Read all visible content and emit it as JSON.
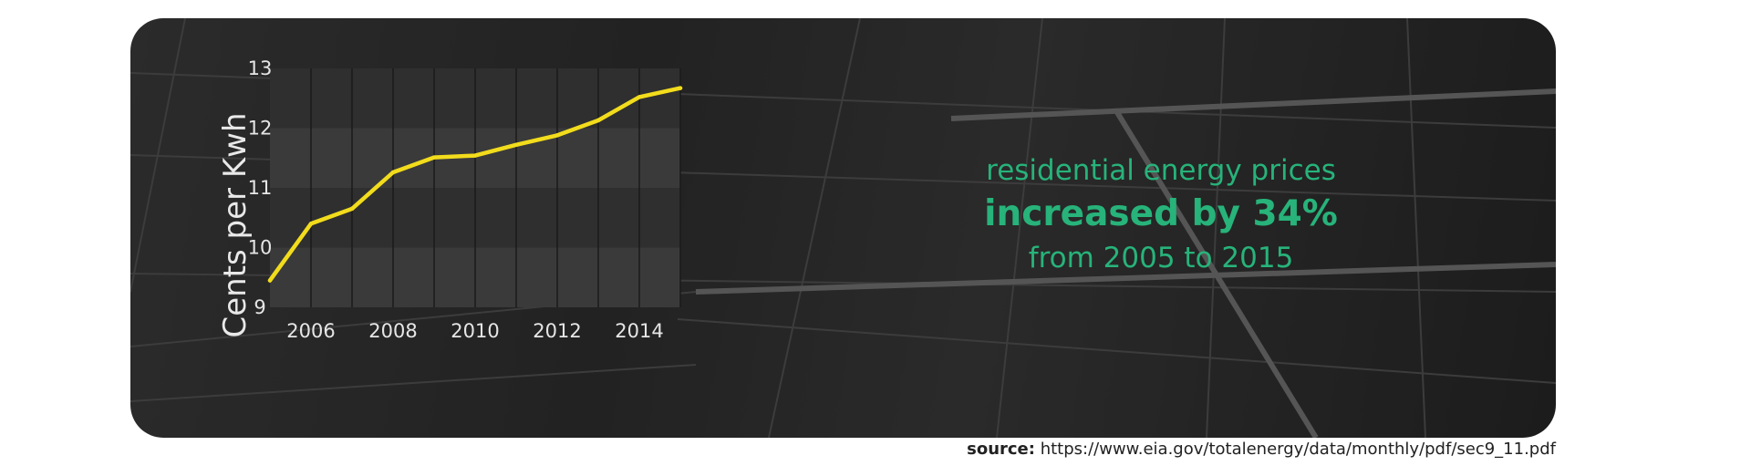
{
  "headline": {
    "line1": "residential energy prices",
    "line2": "increased by 34%",
    "line3": "from 2005 to 2015"
  },
  "source": {
    "label": "source:",
    "url": "https://www.eia.gov/totalenergy/data/monthly/pdf/sec9_11.pdf"
  },
  "colors": {
    "line": "#f2dc1c",
    "headline": "#27b37a"
  },
  "chart_data": {
    "type": "line",
    "ylabel": "Cents per Kwh",
    "xlabel": "",
    "title": "",
    "x": [
      2005,
      2006,
      2007,
      2008,
      2009,
      2010,
      2011,
      2012,
      2013,
      2014,
      2015
    ],
    "values": [
      9.45,
      10.4,
      10.65,
      11.26,
      11.51,
      11.54,
      11.72,
      11.88,
      12.13,
      12.52,
      12.67
    ],
    "xlim": [
      2005,
      2015
    ],
    "ylim": [
      9,
      13
    ],
    "xticks": [
      2006,
      2008,
      2010,
      2012,
      2014
    ],
    "yticks": [
      9,
      10,
      11,
      12,
      13
    ],
    "grid": true,
    "legend": "none"
  }
}
